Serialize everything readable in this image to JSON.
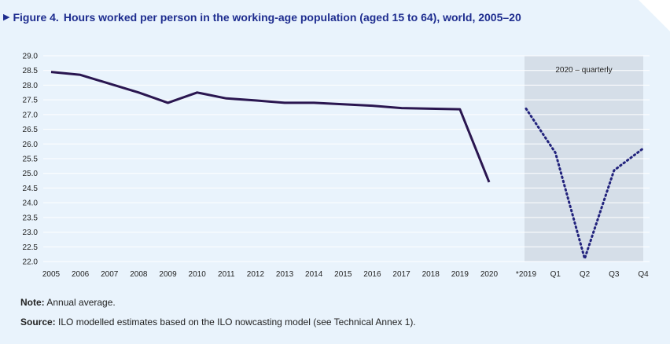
{
  "header": {
    "arrow": "▶",
    "figure_label": "Figure 4.",
    "title": "Hours worked per person in the working-age population (aged 15 to 64), world, 2005–20"
  },
  "chart_data": {
    "type": "line",
    "title": "Hours worked per person in the working-age population (aged 15 to 64), world, 2005–20",
    "ylim": [
      22.0,
      29.0
    ],
    "yticks": [
      "29.0",
      "28.5",
      "28.0",
      "27.5",
      "27.0",
      "26.5",
      "26.0",
      "25.5",
      "25.0",
      "24.5",
      "24.0",
      "23.5",
      "23.0",
      "22.5",
      "22.0"
    ],
    "annual": {
      "name": "Annual average",
      "categories": [
        "2005",
        "2006",
        "2007",
        "2008",
        "2009",
        "2010",
        "2011",
        "2012",
        "2013",
        "2014",
        "2015",
        "2016",
        "2017",
        "2018",
        "2019",
        "2020"
      ],
      "values": [
        28.45,
        28.35,
        28.05,
        27.75,
        27.4,
        27.75,
        27.55,
        27.48,
        27.4,
        27.4,
        27.35,
        27.3,
        27.22,
        27.2,
        27.18,
        24.7
      ]
    },
    "quarterly": {
      "name": "2020 – quarterly",
      "panel_label": "2020 – quarterly",
      "categories": [
        "*2019",
        "Q1",
        "Q2",
        "Q3",
        "Q4"
      ],
      "values": [
        27.2,
        25.7,
        22.1,
        25.1,
        25.85
      ]
    },
    "colors": {
      "line": "#2a1650",
      "dotted": "#22237d",
      "shade": "#d5dee8",
      "grid": "#ffffff"
    }
  },
  "footer": {
    "note_label": "Note:",
    "note_text": " Annual average.",
    "source_label": "Source:",
    "source_text": " ILO modelled estimates based on the ILO nowcasting model (see Technical Annex 1)."
  }
}
